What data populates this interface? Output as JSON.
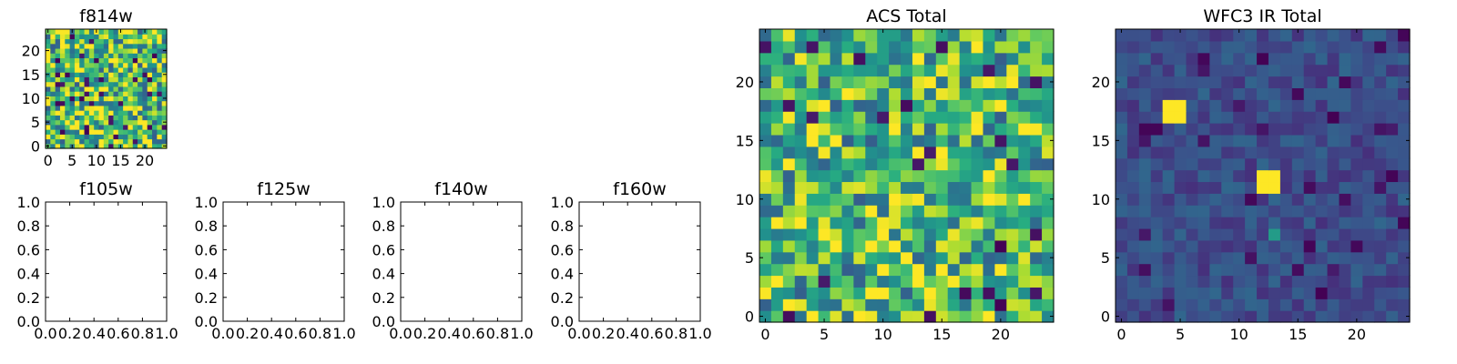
{
  "colormap": "viridis",
  "chart_data": [
    {
      "type": "heatmap",
      "title": "f814w",
      "nx": 25,
      "ny": 25,
      "xlim": [
        -0.5,
        24.5
      ],
      "ylim": [
        -0.5,
        24.5
      ],
      "xticks": [
        0,
        5,
        10,
        15,
        20
      ],
      "yticks": [
        0,
        5,
        10,
        15,
        20
      ],
      "xtick_labels": [
        "0",
        "5",
        "10",
        "15",
        "20"
      ],
      "ytick_labels": [
        "0",
        "5",
        "10",
        "15",
        "20"
      ],
      "value_range": [
        0,
        1
      ],
      "noise": {
        "seed": 814,
        "mean": 0.7,
        "spread": 0.4,
        "dark_fraction": 0.05
      },
      "bright_spots": []
    },
    {
      "type": "heatmap",
      "title": "f105w",
      "empty": true,
      "xlim": [
        0,
        1
      ],
      "ylim": [
        0,
        1
      ],
      "xtick_labels": [
        "0.0",
        "0.2",
        "0.4",
        "0.6",
        "0.8",
        "1.0"
      ],
      "ytick_labels": [
        "0.0",
        "0.2",
        "0.4",
        "0.6",
        "0.8",
        "1.0"
      ]
    },
    {
      "type": "heatmap",
      "title": "f125w",
      "empty": true,
      "xlim": [
        0,
        1
      ],
      "ylim": [
        0,
        1
      ],
      "xtick_labels": [
        "0.0",
        "0.2",
        "0.4",
        "0.6",
        "0.8",
        "1.0"
      ],
      "ytick_labels": [
        "0.0",
        "0.2",
        "0.4",
        "0.6",
        "0.8",
        "1.0"
      ]
    },
    {
      "type": "heatmap",
      "title": "f140w",
      "empty": true,
      "xlim": [
        0,
        1
      ],
      "ylim": [
        0,
        1
      ],
      "xtick_labels": [
        "0.0",
        "0.2",
        "0.4",
        "0.6",
        "0.8",
        "1.0"
      ],
      "ytick_labels": [
        "0.0",
        "0.2",
        "0.4",
        "0.6",
        "0.8",
        "1.0"
      ]
    },
    {
      "type": "heatmap",
      "title": "f160w",
      "empty": true,
      "xlim": [
        0,
        1
      ],
      "ylim": [
        0,
        1
      ],
      "xtick_labels": [
        "0.0",
        "0.2",
        "0.4",
        "0.6",
        "0.8",
        "1.0"
      ],
      "ytick_labels": [
        "0.0",
        "0.2",
        "0.4",
        "0.6",
        "0.8",
        "1.0"
      ]
    },
    {
      "type": "heatmap",
      "title": "ACS Total",
      "nx": 25,
      "ny": 25,
      "xlim": [
        -0.5,
        24.5
      ],
      "ylim": [
        -0.5,
        24.5
      ],
      "xticks": [
        0,
        5,
        10,
        15,
        20
      ],
      "yticks": [
        0,
        5,
        10,
        15,
        20
      ],
      "xtick_labels": [
        "0",
        "5",
        "10",
        "15",
        "20"
      ],
      "ytick_labels": [
        "0",
        "5",
        "10",
        "15",
        "20"
      ],
      "value_range": [
        0,
        1
      ],
      "noise": {
        "seed": 42,
        "mean": 0.68,
        "spread": 0.38,
        "dark_fraction": 0.05
      },
      "bright_spots": []
    },
    {
      "type": "heatmap",
      "title": "WFC3 IR Total",
      "nx": 25,
      "ny": 25,
      "xlim": [
        -0.5,
        24.5
      ],
      "ylim": [
        -0.5,
        24.5
      ],
      "xticks": [
        0,
        5,
        10,
        15,
        20
      ],
      "yticks": [
        0,
        5,
        10,
        15,
        20
      ],
      "xtick_labels": [
        "0",
        "5",
        "10",
        "15",
        "20"
      ],
      "ytick_labels": [
        "0",
        "5",
        "10",
        "15",
        "20"
      ],
      "value_range": [
        0,
        1
      ],
      "noise": {
        "seed": 7,
        "mean": 0.24,
        "spread": 0.1,
        "dark_fraction": 0.04
      },
      "bright_spots": [
        {
          "x": 4,
          "y": 17,
          "value": 1.0
        },
        {
          "x": 5,
          "y": 17,
          "value": 1.0
        },
        {
          "x": 4,
          "y": 18,
          "value": 1.0
        },
        {
          "x": 5,
          "y": 18,
          "value": 1.0
        },
        {
          "x": 12,
          "y": 11,
          "value": 1.0
        },
        {
          "x": 13,
          "y": 11,
          "value": 1.0
        },
        {
          "x": 12,
          "y": 12,
          "value": 1.0
        },
        {
          "x": 13,
          "y": 12,
          "value": 1.0
        },
        {
          "x": 13,
          "y": 7,
          "value": 0.55
        }
      ]
    }
  ]
}
